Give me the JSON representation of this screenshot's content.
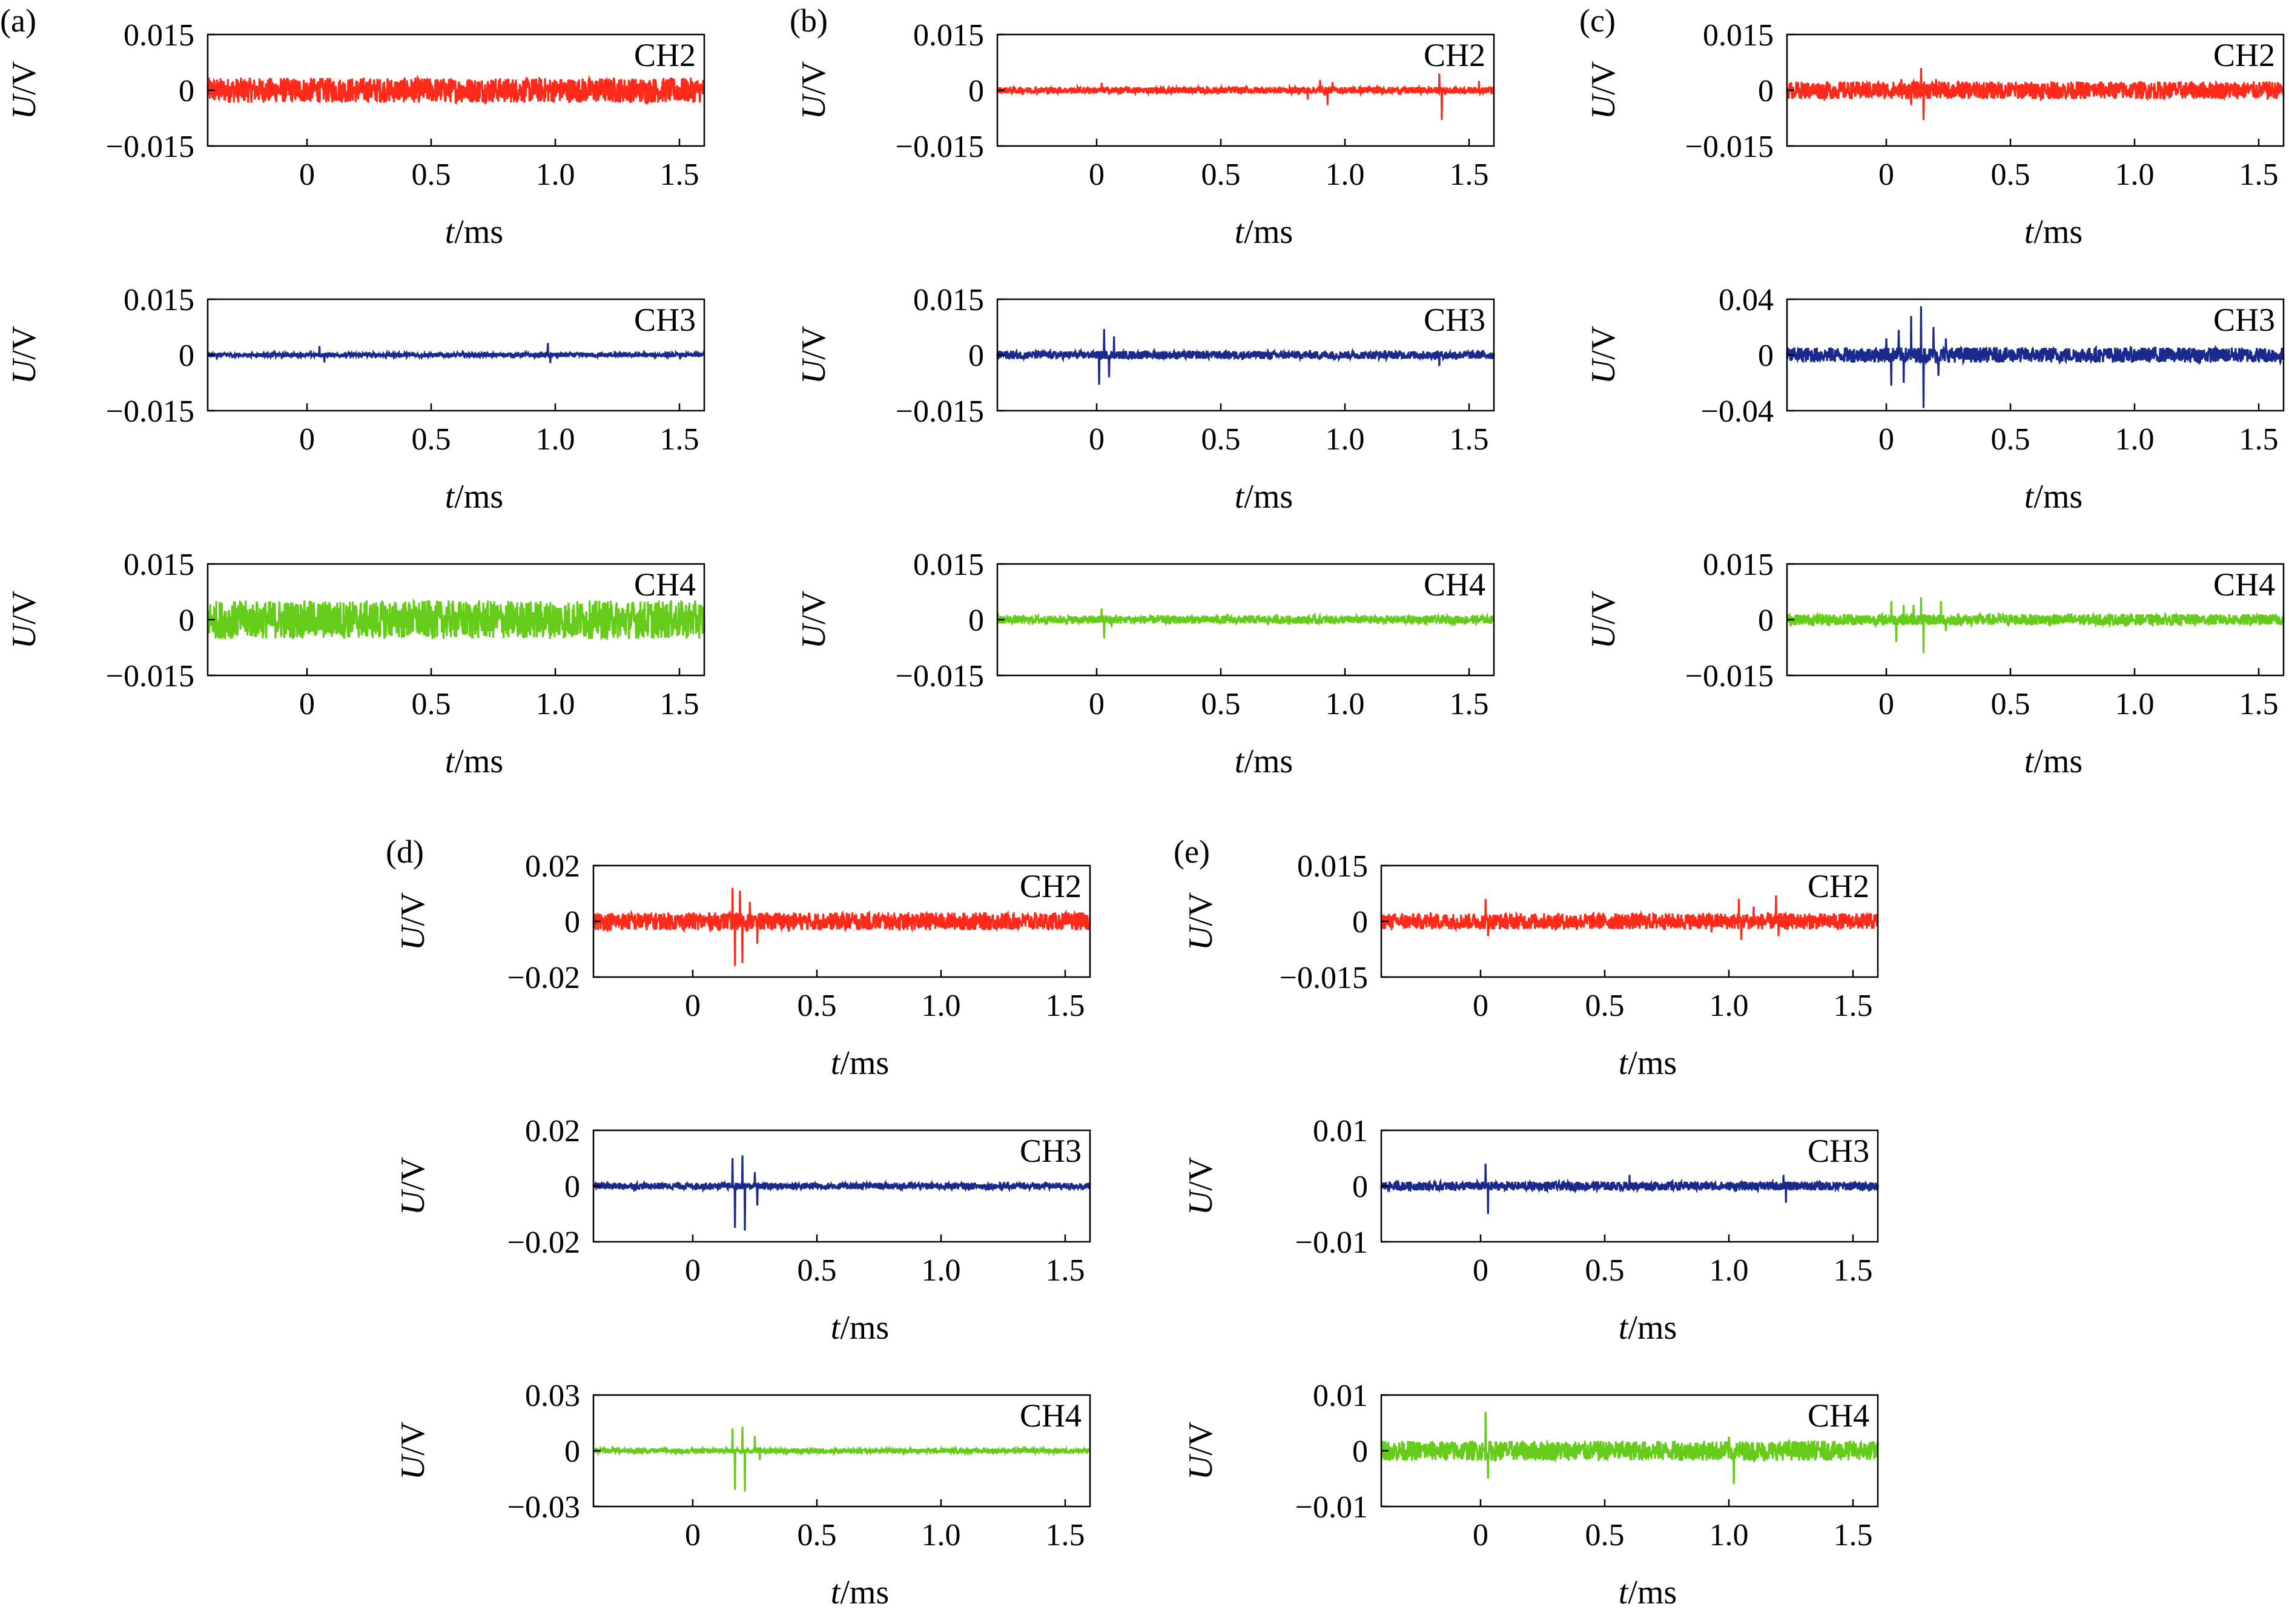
{
  "figure": {
    "panels": [
      {
        "label": "(a)",
        "channels": [
          {
            "name": "CH2",
            "color": "#ff2a1a",
            "ylim": [
              -0.015,
              0.015
            ],
            "yticks": [
              "0.015",
              "0",
              "−0.015"
            ],
            "noise": 0.0034,
            "spikes": []
          },
          {
            "name": "CH3",
            "color": "#1a2a8c",
            "ylim": [
              -0.015,
              0.015
            ],
            "yticks": [
              "0.015",
              "0",
              "−0.015"
            ],
            "noise": 0.0006,
            "spikes": [
              [
                0.05,
                0.0024
              ],
              [
                0.07,
                -0.002
              ],
              [
                0.97,
                0.0032
              ],
              [
                0.98,
                -0.0022
              ]
            ]
          },
          {
            "name": "CH4",
            "color": "#66cc1a",
            "ylim": [
              -0.015,
              0.015
            ],
            "yticks": [
              "0.015",
              "0",
              "−0.015"
            ],
            "noise": 0.0052,
            "spikes": []
          }
        ]
      },
      {
        "label": "(b)",
        "channels": [
          {
            "name": "CH2",
            "color": "#ff2a1a",
            "ylim": [
              -0.015,
              0.015
            ],
            "yticks": [
              "0.015",
              "0",
              "−0.015"
            ],
            "noise": 0.0009,
            "spikes": [
              [
                0.02,
                0.002
              ],
              [
                0.85,
                -0.0025
              ],
              [
                0.9,
                0.0028
              ],
              [
                0.93,
                -0.004
              ],
              [
                0.95,
                0.0022
              ],
              [
                1.38,
                0.0045
              ],
              [
                1.39,
                -0.008
              ],
              [
                1.54,
                0.0025
              ]
            ]
          },
          {
            "name": "CH3",
            "color": "#1a2a8c",
            "ylim": [
              -0.015,
              0.015
            ],
            "yticks": [
              "0.015",
              "0",
              "−0.015"
            ],
            "noise": 0.0011,
            "spikes": [
              [
                0.01,
                -0.008
              ],
              [
                0.03,
                0.007
              ],
              [
                0.05,
                -0.006
              ],
              [
                0.07,
                0.005
              ],
              [
                1.38,
                -0.003
              ]
            ]
          },
          {
            "name": "CH4",
            "color": "#66cc1a",
            "ylim": [
              -0.015,
              0.015
            ],
            "yticks": [
              "0.015",
              "0",
              "−0.015"
            ],
            "noise": 0.0011,
            "spikes": [
              [
                0.02,
                0.003
              ],
              [
                0.03,
                -0.005
              ],
              [
                0.06,
                -0.002
              ]
            ]
          }
        ]
      },
      {
        "label": "(c)",
        "channels": [
          {
            "name": "CH2",
            "color": "#ff2a1a",
            "ylim": [
              -0.015,
              0.015
            ],
            "yticks": [
              "0.015",
              "0",
              "−0.015"
            ],
            "noise": 0.0024,
            "spikes": [
              [
                0.06,
                0.003
              ],
              [
                0.1,
                -0.004
              ],
              [
                0.14,
                0.006
              ],
              [
                0.15,
                -0.008
              ],
              [
                0.2,
                0.003
              ]
            ]
          },
          {
            "name": "CH3",
            "color": "#1a2a8c",
            "ylim": [
              -0.04,
              0.04
            ],
            "yticks": [
              "0.04",
              "0",
              "−0.04"
            ],
            "noise": 0.0055,
            "spikes": [
              [
                0.0,
                0.012
              ],
              [
                0.02,
                -0.022
              ],
              [
                0.05,
                0.018
              ],
              [
                0.07,
                -0.02
              ],
              [
                0.1,
                0.028
              ],
              [
                0.14,
                0.035
              ],
              [
                0.15,
                -0.038
              ],
              [
                0.19,
                0.02
              ],
              [
                0.21,
                -0.015
              ],
              [
                0.24,
                0.012
              ]
            ]
          },
          {
            "name": "CH4",
            "color": "#66cc1a",
            "ylim": [
              -0.015,
              0.015
            ],
            "yticks": [
              "0.015",
              "0",
              "−0.015"
            ],
            "noise": 0.0015,
            "spikes": [
              [
                0.02,
                0.005
              ],
              [
                0.04,
                -0.006
              ],
              [
                0.07,
                0.004
              ],
              [
                0.11,
                0.004
              ],
              [
                0.14,
                0.006
              ],
              [
                0.15,
                -0.009
              ],
              [
                0.22,
                0.005
              ],
              [
                0.24,
                -0.003
              ]
            ]
          }
        ]
      },
      {
        "label": "(d)",
        "channels": [
          {
            "name": "CH2",
            "color": "#ff2a1a",
            "ylim": [
              -0.02,
              0.02
            ],
            "yticks": [
              "0.02",
              "0",
              "−0.02"
            ],
            "noise": 0.0032,
            "spikes": [
              [
                0.16,
                0.012
              ],
              [
                0.17,
                -0.016
              ],
              [
                0.19,
                0.011
              ],
              [
                0.2,
                -0.015
              ],
              [
                0.23,
                0.007
              ],
              [
                0.26,
                -0.008
              ]
            ]
          },
          {
            "name": "CH3",
            "color": "#1a2a8c",
            "ylim": [
              -0.02,
              0.02
            ],
            "yticks": [
              "0.02",
              "0",
              "−0.02"
            ],
            "noise": 0.0012,
            "spikes": [
              [
                0.16,
                0.01
              ],
              [
                0.17,
                -0.015
              ],
              [
                0.2,
                0.011
              ],
              [
                0.21,
                -0.016
              ],
              [
                0.25,
                0.005
              ],
              [
                0.26,
                -0.007
              ]
            ]
          },
          {
            "name": "CH4",
            "color": "#66cc1a",
            "ylim": [
              -0.03,
              0.03
            ],
            "yticks": [
              "0.03",
              "0",
              "−0.03"
            ],
            "noise": 0.0012,
            "spikes": [
              [
                0.16,
                0.012
              ],
              [
                0.17,
                -0.021
              ],
              [
                0.2,
                0.013
              ],
              [
                0.21,
                -0.022
              ],
              [
                0.25,
                0.008
              ],
              [
                0.27,
                -0.005
              ]
            ]
          }
        ]
      },
      {
        "label": "(e)",
        "channels": [
          {
            "name": "CH2",
            "color": "#ff2a1a",
            "ylim": [
              -0.015,
              0.015
            ],
            "yticks": [
              "0.015",
              "0",
              "−0.015"
            ],
            "noise": 0.0022,
            "spikes": [
              [
                0.02,
                0.006
              ],
              [
                0.03,
                -0.004
              ],
              [
                0.88,
                0.002
              ],
              [
                0.93,
                -0.003
              ],
              [
                1.04,
                0.006
              ],
              [
                1.05,
                -0.005
              ],
              [
                1.1,
                0.004
              ],
              [
                1.19,
                0.007
              ],
              [
                1.2,
                -0.004
              ]
            ]
          },
          {
            "name": "CH3",
            "color": "#1a2a8c",
            "ylim": [
              -0.01,
              0.01
            ],
            "yticks": [
              "0.01",
              "0",
              "−0.01"
            ],
            "noise": 0.0008,
            "spikes": [
              [
                0.02,
                0.004
              ],
              [
                0.03,
                -0.005
              ],
              [
                0.6,
                0.002
              ],
              [
                1.22,
                0.002
              ],
              [
                1.23,
                -0.003
              ]
            ]
          },
          {
            "name": "CH4",
            "color": "#66cc1a",
            "ylim": [
              -0.01,
              0.01
            ],
            "yticks": [
              "0.01",
              "0",
              "−0.01"
            ],
            "noise": 0.0018,
            "spikes": [
              [
                0.02,
                0.007
              ],
              [
                0.03,
                -0.005
              ],
              [
                1.0,
                0.0025
              ],
              [
                1.02,
                -0.006
              ]
            ]
          }
        ]
      }
    ]
  },
  "chart_data": {
    "type": "line",
    "xlabel": "t/ms",
    "ylabel": "U/V",
    "xlim": [
      -0.4,
      1.6
    ],
    "xticks": [
      "0",
      "0.5",
      "1.0",
      "1.5"
    ],
    "series_names": [
      "CH2",
      "CH3",
      "CH4"
    ],
    "grid": false
  }
}
